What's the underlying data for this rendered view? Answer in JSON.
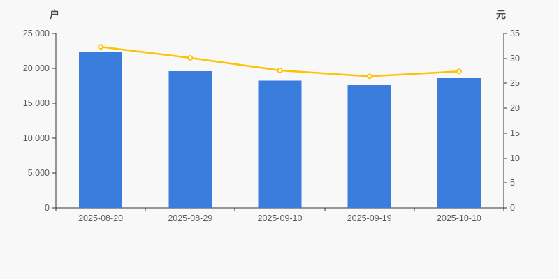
{
  "chart_data": {
    "type": "bar",
    "subtype": "dual-axis-bar-line",
    "title": "",
    "categories": [
      "2025-08-20",
      "2025-08-29",
      "2025-09-10",
      "2025-09-19",
      "2025-10-10"
    ],
    "series": [
      {
        "id": "bar-series",
        "type": "bar",
        "axis": "left",
        "values": [
          22300,
          19600,
          18250,
          17600,
          18600
        ],
        "color": "#3b7ddd"
      },
      {
        "id": "line-series",
        "type": "line",
        "axis": "right",
        "values": [
          32.3,
          30.1,
          27.6,
          26.4,
          27.4
        ],
        "color": "#fdc300",
        "marker_fill": "#ffffff"
      }
    ],
    "left_axis": {
      "label": "户",
      "min": 0,
      "max": 25000,
      "tick_step": 5000,
      "tick_labels": [
        "0",
        "5,000",
        "10,000",
        "15,000",
        "20,000",
        "25,000"
      ]
    },
    "right_axis": {
      "label": "元",
      "min": 0,
      "max": 35,
      "tick_step": 5,
      "tick_labels": [
        "0",
        "5",
        "10",
        "15",
        "20",
        "25",
        "30",
        "35"
      ]
    },
    "grid": false,
    "legend": false,
    "colors": {
      "background": "#f8f8f8",
      "axis_line": "#333333",
      "tick_text": "#595959",
      "axis_name_text": "#4a4a4a"
    }
  }
}
